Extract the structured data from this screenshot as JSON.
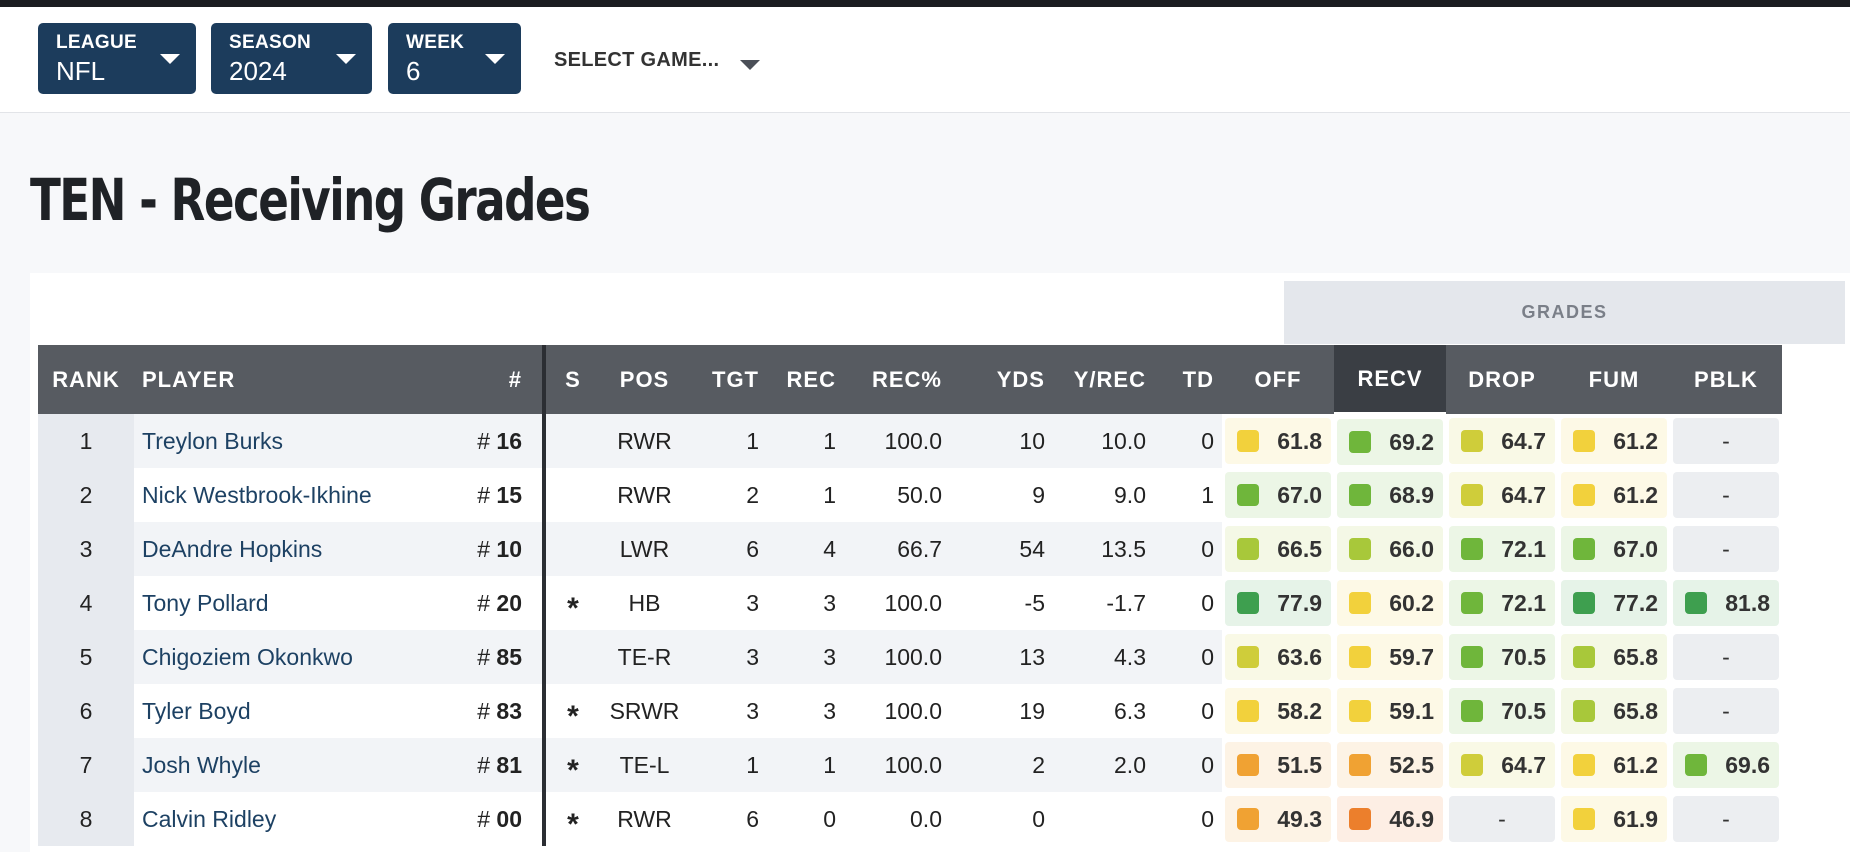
{
  "filters": {
    "league": {
      "label": "LEAGUE",
      "value": "NFL"
    },
    "season": {
      "label": "SEASON",
      "value": "2024"
    },
    "week": {
      "label": "WEEK",
      "value": "6"
    },
    "game": {
      "label": "SELECT GAME..."
    }
  },
  "page": {
    "title": "TEN - Receiving Grades"
  },
  "table": {
    "grades_group_label": "GRADES",
    "columns": {
      "rank": "RANK",
      "player": "PLAYER",
      "num": "#",
      "s": "S",
      "pos": "POS",
      "tgt": "TGT",
      "rec": "REC",
      "rec_pct": "REC%",
      "yds": "YDS",
      "y_rec": "Y/REC",
      "td": "TD",
      "off": "OFF",
      "recv": "RECV",
      "drop": "DROP",
      "fum": "FUM",
      "pblk": "PBLK"
    },
    "active_sort_column": "RECV",
    "rows": [
      {
        "rank": "1",
        "player": "Treylon Burks",
        "num": "16",
        "s": "",
        "pos": "RWR",
        "tgt": "1",
        "rec": "1",
        "rec_pct": "100.0",
        "yds": "10",
        "y_rec": "10.0",
        "td": "0",
        "off": "61.8",
        "recv": "69.2",
        "drop": "64.7",
        "fum": "61.2",
        "pblk": "-"
      },
      {
        "rank": "2",
        "player": "Nick Westbrook-Ikhine",
        "num": "15",
        "s": "",
        "pos": "RWR",
        "tgt": "2",
        "rec": "1",
        "rec_pct": "50.0",
        "yds": "9",
        "y_rec": "9.0",
        "td": "1",
        "off": "67.0",
        "recv": "68.9",
        "drop": "64.7",
        "fum": "61.2",
        "pblk": "-"
      },
      {
        "rank": "3",
        "player": "DeAndre Hopkins",
        "num": "10",
        "s": "",
        "pos": "LWR",
        "tgt": "6",
        "rec": "4",
        "rec_pct": "66.7",
        "yds": "54",
        "y_rec": "13.5",
        "td": "0",
        "off": "66.5",
        "recv": "66.0",
        "drop": "72.1",
        "fum": "67.0",
        "pblk": "-"
      },
      {
        "rank": "4",
        "player": "Tony Pollard",
        "num": "20",
        "s": "*",
        "pos": "HB",
        "tgt": "3",
        "rec": "3",
        "rec_pct": "100.0",
        "yds": "-5",
        "y_rec": "-1.7",
        "td": "0",
        "off": "77.9",
        "recv": "60.2",
        "drop": "72.1",
        "fum": "77.2",
        "pblk": "81.8"
      },
      {
        "rank": "5",
        "player": "Chigoziem Okonkwo",
        "num": "85",
        "s": "",
        "pos": "TE-R",
        "tgt": "3",
        "rec": "3",
        "rec_pct": "100.0",
        "yds": "13",
        "y_rec": "4.3",
        "td": "0",
        "off": "63.6",
        "recv": "59.7",
        "drop": "70.5",
        "fum": "65.8",
        "pblk": "-"
      },
      {
        "rank": "6",
        "player": "Tyler Boyd",
        "num": "83",
        "s": "*",
        "pos": "SRWR",
        "tgt": "3",
        "rec": "3",
        "rec_pct": "100.0",
        "yds": "19",
        "y_rec": "6.3",
        "td": "0",
        "off": "58.2",
        "recv": "59.1",
        "drop": "70.5",
        "fum": "65.8",
        "pblk": "-"
      },
      {
        "rank": "7",
        "player": "Josh Whyle",
        "num": "81",
        "s": "*",
        "pos": "TE-L",
        "tgt": "1",
        "rec": "1",
        "rec_pct": "100.0",
        "yds": "2",
        "y_rec": "2.0",
        "td": "0",
        "off": "51.5",
        "recv": "52.5",
        "drop": "64.7",
        "fum": "61.2",
        "pblk": "69.6"
      },
      {
        "rank": "8",
        "player": "Calvin Ridley",
        "num": "00",
        "s": "*",
        "pos": "RWR",
        "tgt": "6",
        "rec": "0",
        "rec_pct": "0.0",
        "yds": "0",
        "y_rec": "",
        "td": "0",
        "off": "49.3",
        "recv": "46.9",
        "drop": "-",
        "fum": "61.9",
        "pblk": "-"
      }
    ]
  },
  "grade_colors": {
    "dark_green": "#3e9f4f",
    "green": "#6fb63b",
    "light_green": "#a8c83a",
    "yellow_green": "#cfcd3a",
    "yellow": "#f2d13c",
    "orange": "#f0a233",
    "dark_orange": "#ec7f2c"
  }
}
